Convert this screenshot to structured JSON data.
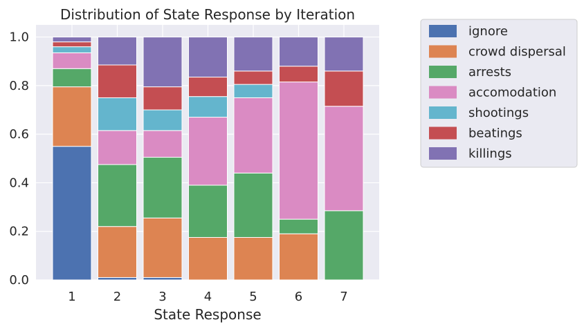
{
  "chart_data": {
    "type": "bar",
    "stacked": true,
    "normalized": true,
    "title": "Distribution of State Response by Iteration",
    "xlabel": "State Response",
    "ylabel": "",
    "ylim": [
      0,
      1.05
    ],
    "yticks": [
      0.0,
      0.2,
      0.4,
      0.6,
      0.8,
      1.0
    ],
    "ytick_labels": [
      "0.0",
      "0.2",
      "0.4",
      "0.6",
      "0.8",
      "1.0"
    ],
    "categories": [
      "1",
      "2",
      "3",
      "4",
      "5",
      "6",
      "7"
    ],
    "grid": true,
    "legend_position": "outside-right-top",
    "series": [
      {
        "name": "ignore",
        "color": "#4c72b0",
        "values": [
          0.55,
          0.01,
          0.01,
          0.0,
          0.0,
          0.0,
          0.0
        ]
      },
      {
        "name": "crowd dispersal",
        "color": "#dd8452",
        "values": [
          0.245,
          0.21,
          0.245,
          0.175,
          0.175,
          0.19,
          0.0
        ]
      },
      {
        "name": "arrests",
        "color": "#55a868",
        "values": [
          0.075,
          0.255,
          0.25,
          0.215,
          0.265,
          0.06,
          0.285
        ]
      },
      {
        "name": "accomodation",
        "color": "#da8bc3",
        "values": [
          0.065,
          0.14,
          0.11,
          0.28,
          0.31,
          0.565,
          0.43
        ]
      },
      {
        "name": "shootings",
        "color": "#64b5cd",
        "values": [
          0.025,
          0.135,
          0.085,
          0.085,
          0.055,
          0.0,
          0.0
        ]
      },
      {
        "name": "beatings",
        "color": "#c44e52",
        "values": [
          0.02,
          0.135,
          0.095,
          0.08,
          0.055,
          0.065,
          0.145
        ]
      },
      {
        "name": "killings",
        "color": "#8172b3",
        "values": [
          0.02,
          0.115,
          0.205,
          0.165,
          0.14,
          0.12,
          0.14
        ]
      }
    ]
  }
}
